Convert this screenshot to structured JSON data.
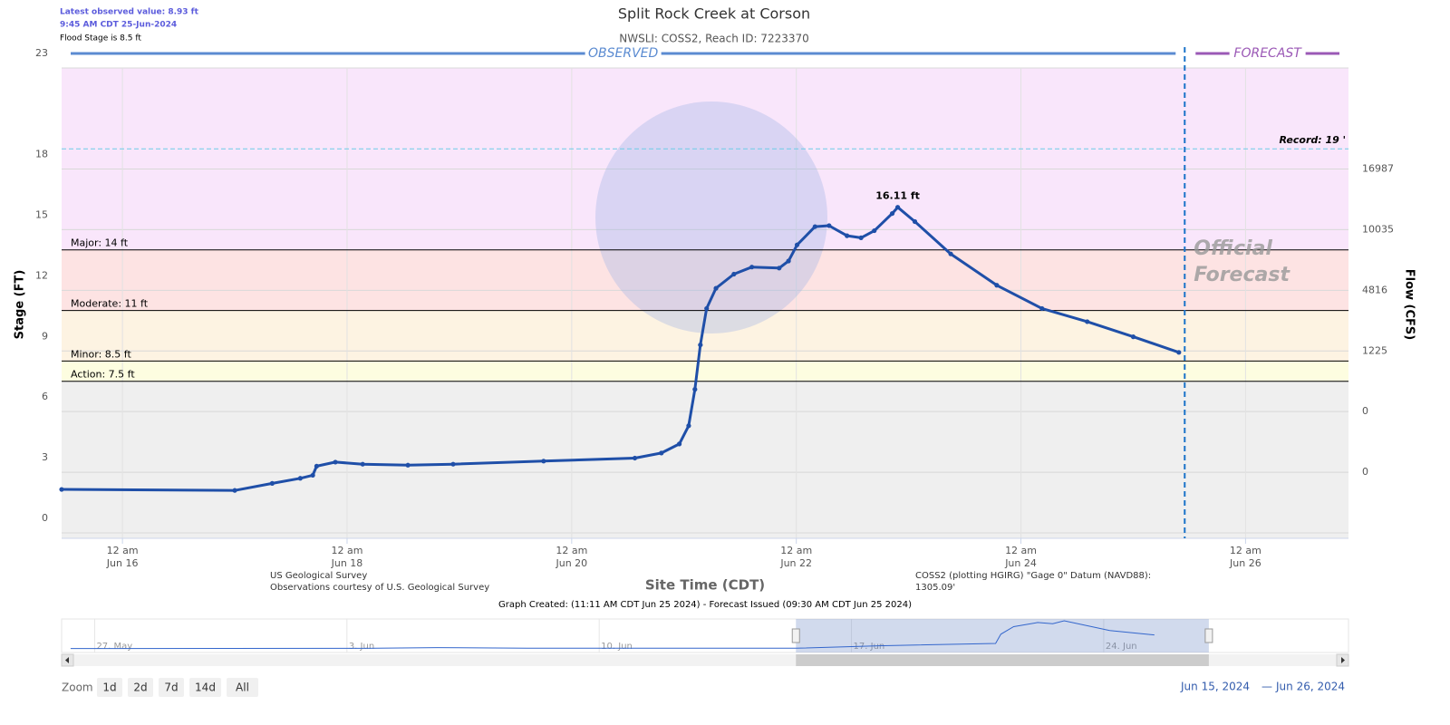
{
  "header": {
    "latest_observed": "Latest observed value: 8.93 ft",
    "latest_time": "9:45 AM CDT 25-Jun-2024",
    "flood_stage": "Flood Stage is 8.5 ft"
  },
  "chart_data": {
    "type": "line",
    "title": "Split Rock Creek at Corson",
    "subtitle": "NWSLI: COSS2, Reach ID: 7223370",
    "observed_label": "OBSERVED",
    "forecast_label": "FORECAST",
    "official_forecast": [
      "Official",
      "Forecast"
    ],
    "y_label": "Stage (FT)",
    "x_label": "Site Time (CDT)",
    "ylim": [
      0,
      23
    ],
    "yticks": [
      0,
      3,
      6,
      9,
      12,
      15,
      18,
      23
    ],
    "grid": true,
    "xlim": [
      "2024-06-15T11:00",
      "2024-06-26T22:00"
    ],
    "xticks": [
      {
        "value": "2024-06-16T00:00",
        "label": [
          "12 am",
          "Jun 16"
        ]
      },
      {
        "value": "2024-06-18T00:00",
        "label": [
          "12 am",
          "Jun 18"
        ]
      },
      {
        "value": "2024-06-20T00:00",
        "label": [
          "12 am",
          "Jun 20"
        ]
      },
      {
        "value": "2024-06-22T00:00",
        "label": [
          "12 am",
          "Jun 22"
        ]
      },
      {
        "value": "2024-06-24T00:00",
        "label": [
          "12 am",
          "Jun 24"
        ]
      },
      {
        "value": "2024-06-26T00:00",
        "label": [
          "12 am",
          "Jun 26"
        ]
      }
    ],
    "flow_axis": {
      "label": "Flow (CFS)",
      "ticks": [
        {
          "stage": 18,
          "flow": 16987
        },
        {
          "stage": 15,
          "flow": 10035
        },
        {
          "stage": 12,
          "flow": 4816
        },
        {
          "stage": 9,
          "flow": 1225
        },
        {
          "stage": 6,
          "flow": 0
        },
        {
          "stage": 3,
          "flow": 0
        }
      ]
    },
    "base_color": "#efefef",
    "thresholds": [
      {
        "label": "Action: 7.5 ft",
        "value": 7.5,
        "color": "#fdfde0"
      },
      {
        "label": "Minor: 8.5 ft",
        "value": 8.5,
        "color": "#fdf3e2"
      },
      {
        "label": "Moderate: 11 ft",
        "value": 11,
        "color": "#fde3e3"
      },
      {
        "label": "Major: 14 ft",
        "value": 14,
        "color": "#f9e6fb"
      }
    ],
    "record": {
      "label": "Record: 19 '",
      "value": 19,
      "color": "#6ccbe8"
    },
    "forecast_start": "2024-06-25T11:00",
    "series": [
      {
        "name": "Observed",
        "color": "#1f4fa8",
        "x": [
          "2024-06-15T11:00",
          "2024-06-17T00:00",
          "2024-06-17T08:00",
          "2024-06-17T14:00",
          "2024-06-17T16:40",
          "2024-06-17T17:30",
          "2024-06-17T21:30",
          "2024-06-18T03:20",
          "2024-06-18T13:00",
          "2024-06-18T22:40",
          "2024-06-19T18:00",
          "2024-06-20T13:30",
          "2024-06-20T19:10",
          "2024-06-20T23:00",
          "2024-06-21T01:00",
          "2024-06-21T02:20",
          "2024-06-21T03:30",
          "2024-06-21T04:50",
          "2024-06-21T06:50",
          "2024-06-21T10:40",
          "2024-06-21T14:30",
          "2024-06-21T20:20",
          "2024-06-21T22:20",
          "2024-06-22T00:10",
          "2024-06-22T04:00",
          "2024-06-22T07:00",
          "2024-06-22T10:50",
          "2024-06-22T13:50",
          "2024-06-22T16:40",
          "2024-06-22T20:30",
          "2024-06-22T21:40",
          "2024-06-23T01:20",
          "2024-06-23T09:00",
          "2024-06-23T18:50",
          "2024-06-24T04:30",
          "2024-06-24T14:10",
          "2024-06-25T00:00",
          "2024-06-25T09:45"
        ],
        "values": [
          2.15,
          2.1,
          2.45,
          2.7,
          2.85,
          3.3,
          3.5,
          3.4,
          3.35,
          3.4,
          3.55,
          3.7,
          3.95,
          4.4,
          5.3,
          7.1,
          9.3,
          11.1,
          12.1,
          12.8,
          13.15,
          13.1,
          13.45,
          14.25,
          15.15,
          15.2,
          14.7,
          14.6,
          14.95,
          15.8,
          16.11,
          15.4,
          13.8,
          12.25,
          11.1,
          10.45,
          9.7,
          8.93
        ]
      }
    ],
    "annotations": [
      {
        "text": "16.11 ft",
        "x": "2024-06-22T21:40",
        "y": 16.11
      }
    ],
    "credits_left": [
      "US Geological Survey",
      "Observations courtesy of U.S. Geological Survey"
    ],
    "credits_right": [
      "COSS2 (plotting HGIRG) \"Gage 0\" Datum (NAVD88):",
      "1305.09'"
    ],
    "created": "Graph Created: (11:11 AM CDT Jun 25 2024) - Forecast Issued (09:30 AM CDT Jun 25 2024)",
    "navigator": {
      "xlim": [
        "2024-05-26T02:00",
        "2024-06-30T19:00"
      ],
      "ylim": [
        0,
        17
      ],
      "xticks": [
        {
          "value": "2024-05-27T00:00",
          "label": "27. May"
        },
        {
          "value": "2024-06-03T00:00",
          "label": "3. Jun"
        },
        {
          "value": "2024-06-10T00:00",
          "label": "10. Jun"
        },
        {
          "value": "2024-06-17T00:00",
          "label": "17. Jun"
        },
        {
          "value": "2024-06-24T00:00",
          "label": "24. Jun"
        }
      ],
      "x": [
        "2024-05-26T08:00",
        "2024-06-03T12:00",
        "2024-06-05T12:00",
        "2024-06-08T00:00",
        "2024-06-15T11:00",
        "2024-06-17T18:00",
        "2024-06-21T00:00",
        "2024-06-21T03:30",
        "2024-06-21T12:00",
        "2024-06-22T04:00",
        "2024-06-22T14:00",
        "2024-06-22T21:40",
        "2024-06-24T04:00",
        "2024-06-25T09:45"
      ],
      "values": [
        2.0,
        2.1,
        2.5,
        2.2,
        2.15,
        3.4,
        4.6,
        9.3,
        13.1,
        15.2,
        14.6,
        16.1,
        11.1,
        8.93
      ]
    },
    "zoom": {
      "label": "Zoom",
      "buttons": [
        "1d",
        "2d",
        "7d",
        "14d",
        "All"
      ]
    },
    "range": {
      "from": "Jun 15, 2024",
      "separator": "—",
      "to": "Jun 26, 2024"
    }
  }
}
